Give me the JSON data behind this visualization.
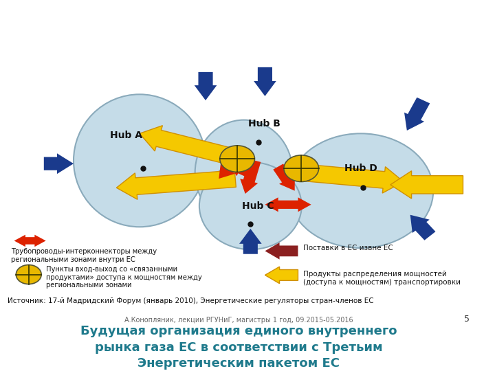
{
  "title": "Будущая организация единого внутреннего\nрынка газа ЕС в соответствии с Третьим\nЭнергетическим пакетом ЕС",
  "title_color": "#1F7A8C",
  "bg_color": "#FFFFFF",
  "hub_labels": [
    "Hub A",
    "Hub B",
    "Hub C",
    "Hub D"
  ],
  "ellipse_color": "#C5DCE8",
  "ellipse_edge_color": "#8AAABB",
  "yellow_color": "#F5C800",
  "yellow_border": "#D09000",
  "red_color": "#DD2200",
  "blue_color": "#1A3A8C",
  "dark_red_color": "#8B2020",
  "hub_circle_color": "#E8B800",
  "source_text": "Источник: 17-й Мадридский Форум (январь 2010), Энергетические регуляторы стран-членов ЕС",
  "footer_text": "А.Конопляник, лекции РГУНиГ, магистры 1 год, 09.2015-05.2016",
  "page_num": "5",
  "legend_red_text": "Трубопроводы-интерконнекторы между\nрегиональными зонами внутри ЕС",
  "legend_hub_text": "Пункты вход-выход со «связанными\nпродуктами» доступа к мощностям между\nрегиональными зонами",
  "legend_darkred_text": "Поставки в ЕС извне ЕС",
  "legend_yellow_text": "Продукты распределения мощностей\n(доступа к мощностям) транспортировки"
}
